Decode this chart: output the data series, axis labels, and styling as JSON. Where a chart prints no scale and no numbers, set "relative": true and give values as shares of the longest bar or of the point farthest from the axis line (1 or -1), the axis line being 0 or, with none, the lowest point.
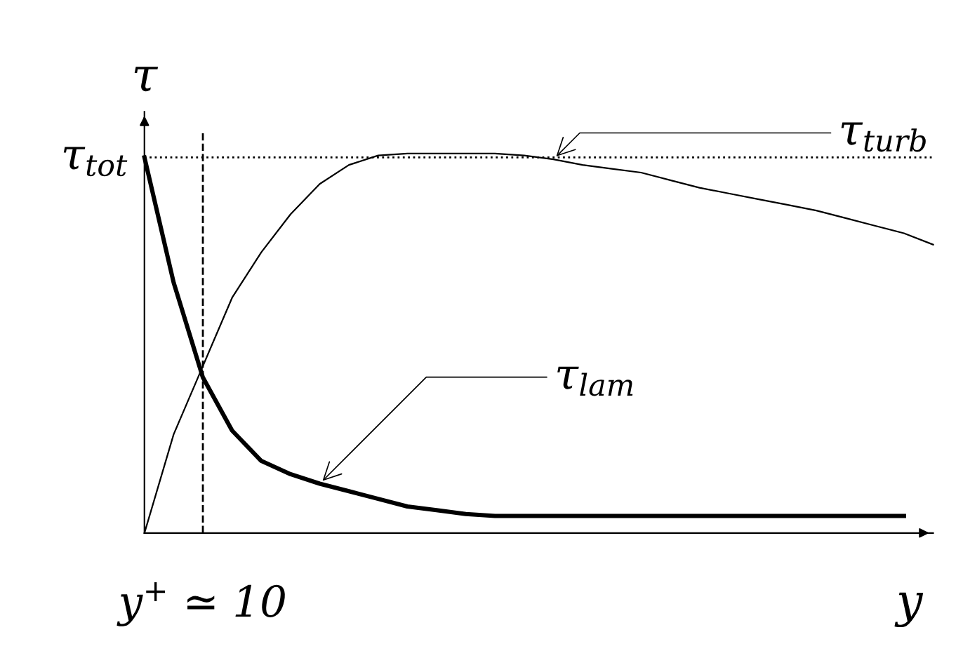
{
  "chart_data": {
    "type": "line",
    "relative": true,
    "xlabel": "y",
    "ylabel": "τ",
    "categories": [
      null,
      null,
      null,
      null,
      null,
      null,
      null,
      null,
      null,
      null,
      null,
      null,
      null,
      null,
      null,
      null,
      null,
      null,
      null,
      null,
      null,
      null,
      null,
      null,
      null,
      null,
      null,
      null
    ],
    "series": [
      {
        "name": "τ$_{turb}$",
        "color": "#000000",
        "values": [
          0,
          0.26,
          0.44,
          0.62,
          0.74,
          0.84,
          0.92,
          0.97,
          0.995,
          1.0,
          1.0,
          1.0,
          1.0,
          0.995,
          0.985,
          0.97,
          0.96,
          0.95,
          0.93,
          0.91,
          0.895,
          0.88,
          0.865,
          0.85,
          0.83,
          0.81,
          0.79,
          0.76
        ]
      },
      {
        "name": "τ$_{lam}$",
        "color": "#000000",
        "values": [
          0.99,
          0.66,
          0.41,
          0.27,
          0.19,
          0.155,
          0.13,
          0.11,
          0.09,
          0.07,
          0.06,
          0.05,
          0.045,
          0.045,
          0.045,
          0.045,
          0.045,
          0.045,
          0.045,
          0.045,
          0.045,
          0.045,
          0.045,
          0.045,
          0.045,
          0.045,
          0.045,
          null
        ]
      }
    ],
    "ref_lines": [
      {
        "axis": "y",
        "value": 0.99,
        "label": "τ$_{tot}$",
        "line_style": "dotted",
        "color": "#000000"
      }
    ],
    "annotations": [
      "y$^{+}$ ≃ 10"
    ]
  }
}
